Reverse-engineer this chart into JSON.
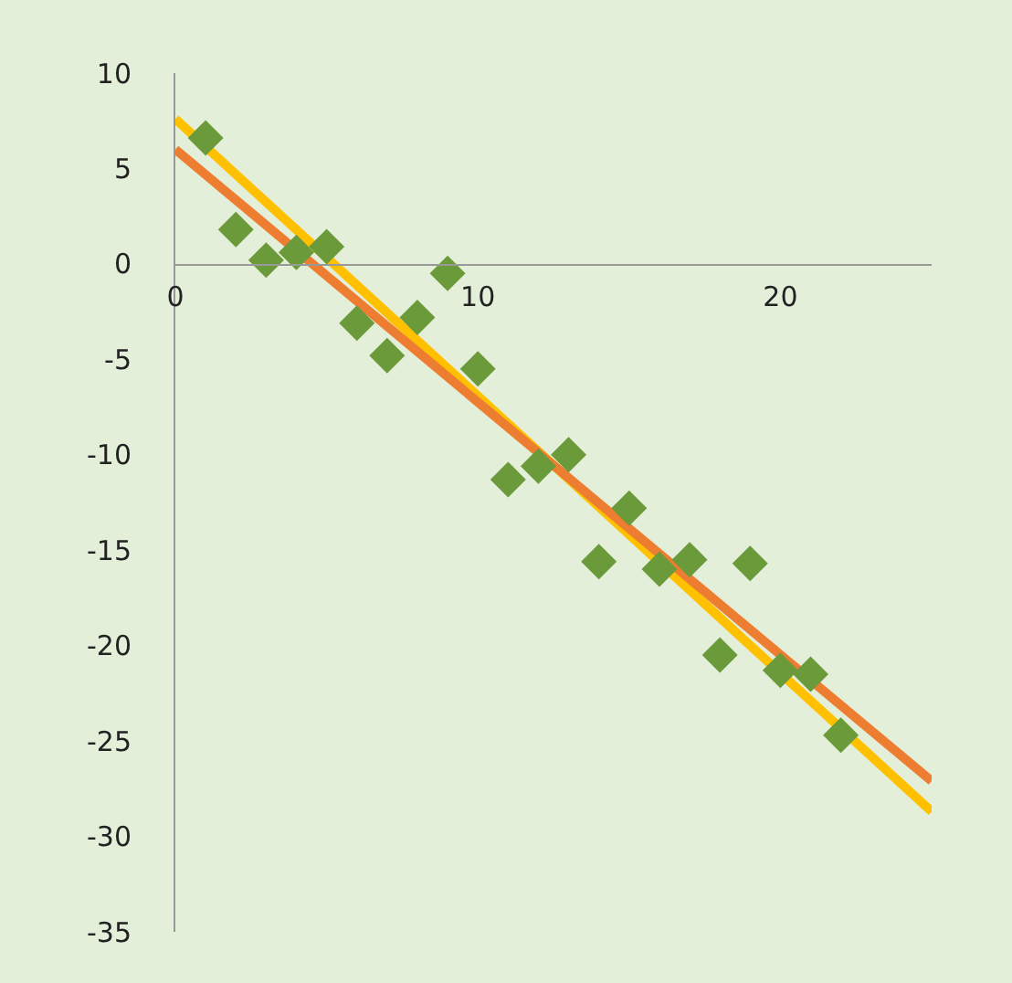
{
  "chart_data": {
    "type": "scatter",
    "xlim": [
      0,
      25
    ],
    "ylim": [
      -35,
      10
    ],
    "xticks": [
      0,
      10,
      20
    ],
    "yticks": [
      -35,
      -30,
      -25,
      -20,
      -15,
      -10,
      -5,
      0,
      5,
      10
    ],
    "grid": false,
    "legend": false,
    "marker": "diamond",
    "series": [
      {
        "type": "line",
        "marker": "none",
        "color": "#ffc000",
        "x": [
          0,
          25
        ],
        "values": [
          7.6,
          -28.7
        ]
      },
      {
        "type": "line",
        "marker": "none",
        "color": "#ed7d31",
        "x": [
          0,
          25
        ],
        "values": [
          6.0,
          -27.1
        ]
      },
      {
        "color": "#6b9a3a",
        "x": [
          1,
          2,
          3,
          4,
          5,
          6,
          7,
          8,
          9,
          10,
          11,
          12,
          13,
          14,
          15,
          16,
          17,
          18,
          19,
          20,
          21,
          22
        ],
        "values": [
          6.6,
          1.8,
          0.2,
          0.6,
          0.9,
          -3.1,
          -4.8,
          -2.8,
          -0.5,
          -5.5,
          -11.3,
          -10.6,
          -10.0,
          -15.6,
          -12.8,
          -16.0,
          -15.5,
          -20.5,
          -15.7,
          -21.3,
          -21.5,
          -24.7
        ]
      }
    ]
  }
}
